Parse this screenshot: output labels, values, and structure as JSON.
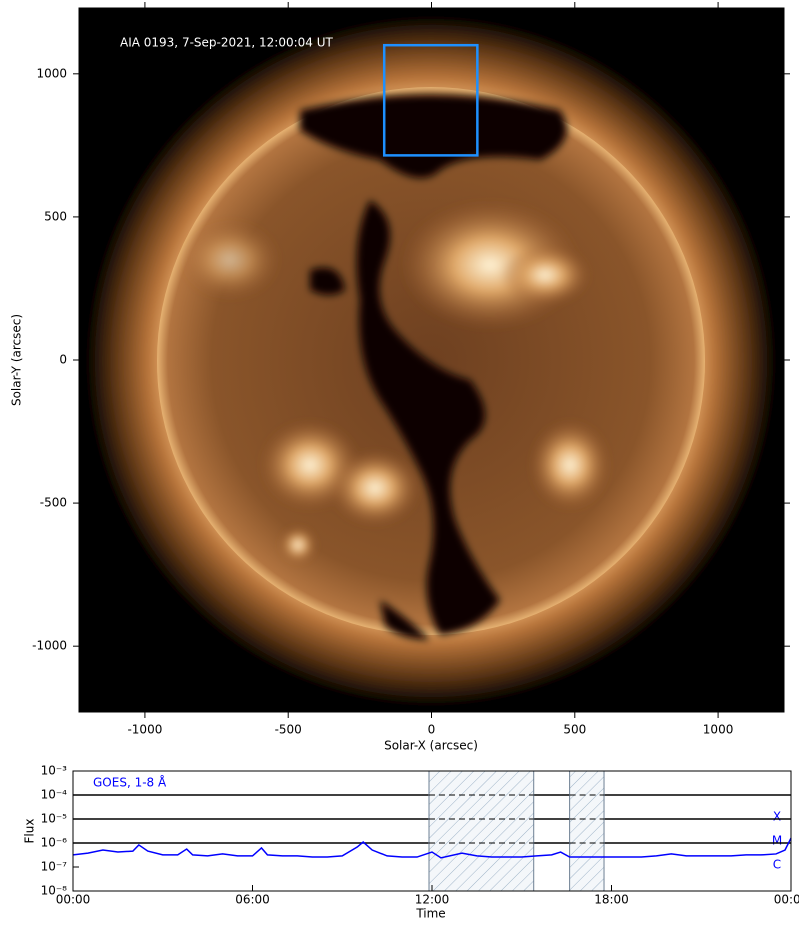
{
  "chart_data": [
    {
      "type": "image",
      "annotation": "AIA 0193, 7-Sep-2021, 12:00:04 UT",
      "xlabel": "Solar-X (arcsec)",
      "ylabel": "Solar-Y (arcsec)",
      "xlim": [
        -1230,
        1230
      ],
      "ylim": [
        -1230,
        1230
      ],
      "xticks": [
        -1000,
        -500,
        0,
        500,
        1000
      ],
      "yticks": [
        -1000,
        -500,
        0,
        500,
        1000
      ],
      "box": {
        "x": [
          -165,
          160
        ],
        "y": [
          715,
          1100
        ],
        "color": "#1e90ff"
      }
    },
    {
      "type": "line",
      "log_y": true,
      "xlabel": "Time",
      "ylabel": "Flux",
      "xlim": [
        0,
        24
      ],
      "ylim": [
        1e-08,
        0.001
      ],
      "xticks": [
        {
          "value": 0,
          "label": "00:00"
        },
        {
          "value": 6,
          "label": "06:00"
        },
        {
          "value": 12,
          "label": "12:00"
        },
        {
          "value": 18,
          "label": "18:00"
        },
        {
          "value": 24,
          "label": "00:00"
        }
      ],
      "yticks": [
        {
          "value": 1e-08,
          "label": "10⁻⁸"
        },
        {
          "value": 1e-07,
          "label": "10⁻⁷"
        },
        {
          "value": 1e-06,
          "label": "10⁻⁶"
        },
        {
          "value": 1e-05,
          "label": "10⁻⁵"
        },
        {
          "value": 0.0001,
          "label": "10⁻⁴"
        },
        {
          "value": 0.001,
          "label": "10⁻³"
        }
      ],
      "flare_classes": [
        {
          "label": "X",
          "level": 0.0001
        },
        {
          "label": "M",
          "level": 1e-05
        },
        {
          "label": "C",
          "level": 1e-06
        }
      ],
      "shaded_intervals": [
        [
          11.9,
          15.4
        ],
        [
          16.6,
          17.75
        ]
      ],
      "x": [
        0,
        0.5,
        1,
        1.5,
        2,
        2.2,
        2.5,
        3,
        3.5,
        3.8,
        4,
        4.5,
        5,
        5.5,
        6,
        6.3,
        6.5,
        7,
        7.5,
        8,
        8.5,
        9,
        9.5,
        9.7,
        10,
        10.5,
        11,
        11.5,
        12,
        12.3,
        13,
        13.5,
        14,
        14.5,
        15,
        15.5,
        16,
        16.3,
        16.6,
        17,
        17.5,
        18,
        18.5,
        19,
        19.5,
        20,
        20.5,
        21,
        21.5,
        22,
        22.5,
        23,
        23.5,
        23.8,
        24
      ],
      "series": [
        {
          "name": "GOES, 1-8 Å",
          "color": "#0000ff",
          "values": [
            3.2e-07,
            3.8e-07,
            5.1e-07,
            4.2e-07,
            4.6e-07,
            8.3e-07,
            4.6e-07,
            3.2e-07,
            3.2e-07,
            5.6e-07,
            3.2e-07,
            2.9e-07,
            3.5e-07,
            2.9e-07,
            2.9e-07,
            6.2e-07,
            3.2e-07,
            2.9e-07,
            2.9e-07,
            2.6e-07,
            2.6e-07,
            2.9e-07,
            6.8e-07,
            1.1e-06,
            5.1e-07,
            2.9e-07,
            2.6e-07,
            2.6e-07,
            4.2e-07,
            2.4e-07,
            3.8e-07,
            2.9e-07,
            2.6e-07,
            2.6e-07,
            2.6e-07,
            2.9e-07,
            3.2e-07,
            4.2e-07,
            2.6e-07,
            2.6e-07,
            2.6e-07,
            2.6e-07,
            2.6e-07,
            2.6e-07,
            2.9e-07,
            3.5e-07,
            2.9e-07,
            2.9e-07,
            2.9e-07,
            2.9e-07,
            3.2e-07,
            3.2e-07,
            3.5e-07,
            5.1e-07,
            1.6e-06
          ]
        }
      ]
    }
  ]
}
